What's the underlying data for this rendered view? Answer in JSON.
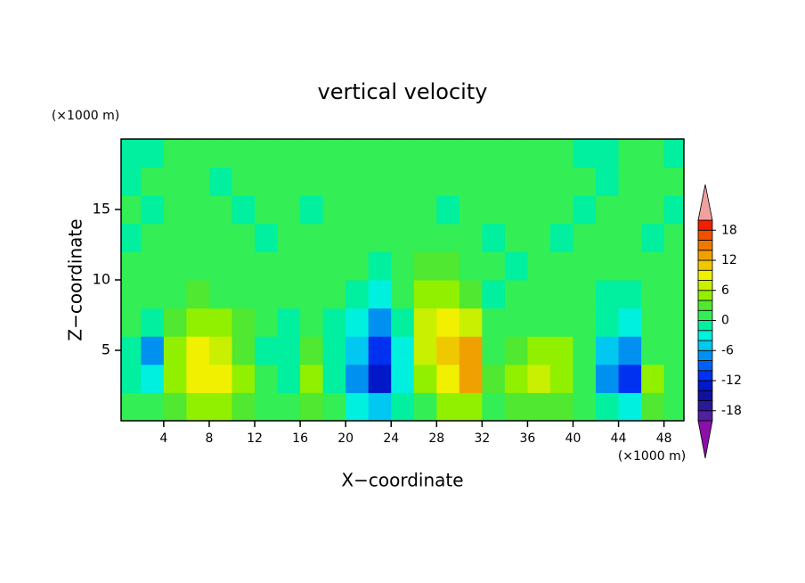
{
  "chart_data": {
    "type": "contour",
    "title": "vertical velocity",
    "xlabel": "X−coordinate",
    "ylabel": "Z−coordinate",
    "x_unit": "(×1000 m)",
    "y_unit": "(×1000 m)",
    "xlim": [
      0.25,
      49.75
    ],
    "ylim": [
      0,
      20
    ],
    "xticks": [
      4,
      8,
      12,
      16,
      20,
      24,
      28,
      32,
      36,
      40,
      44,
      48
    ],
    "yticks": [
      5,
      10,
      15
    ],
    "x": [
      1,
      3,
      5,
      7,
      9,
      11,
      13,
      15,
      17,
      19,
      21,
      23,
      25,
      27,
      29,
      31,
      33,
      35,
      37,
      39,
      41,
      43,
      45,
      47,
      49
    ],
    "y": [
      1,
      3,
      5,
      7,
      9,
      11,
      13,
      15,
      17,
      19
    ],
    "z": [
      [
        1,
        0,
        2,
        4,
        5,
        3,
        1,
        0,
        2,
        0,
        -3,
        -6,
        -2,
        1,
        4,
        5,
        1,
        2,
        3,
        3,
        1,
        -2,
        -4,
        2,
        0
      ],
      [
        -1,
        -4,
        4,
        8,
        9,
        4,
        0,
        -1,
        5,
        -1,
        -8,
        -14,
        -4,
        4,
        9,
        12,
        2,
        4,
        6,
        5,
        0,
        -8,
        -12,
        4,
        1
      ],
      [
        -2,
        -7,
        4,
        8,
        7,
        3,
        -1,
        -2,
        2,
        -1,
        -6,
        -12,
        -3,
        6,
        11,
        12,
        1,
        2,
        5,
        4,
        0,
        -6,
        -8,
        1,
        0
      ],
      [
        0,
        -2,
        2,
        4,
        4,
        2,
        0,
        -1,
        0,
        -1,
        -3,
        -7,
        -2,
        6,
        9,
        6,
        0,
        0,
        1,
        1,
        0,
        -2,
        -3,
        0,
        0
      ],
      [
        1,
        0,
        1,
        2,
        1,
        1,
        0,
        0,
        1,
        0,
        -1,
        -3,
        0,
        4,
        5,
        3,
        -1,
        0,
        1,
        0,
        1,
        -1,
        -1,
        0,
        1
      ],
      [
        0,
        1,
        0,
        1,
        0,
        1,
        0,
        1,
        0,
        1,
        0,
        -1,
        1,
        2,
        2,
        1,
        0,
        -1,
        0,
        1,
        0,
        0,
        1,
        0,
        1
      ],
      [
        -1,
        0,
        1,
        0,
        1,
        0,
        -1,
        0,
        1,
        0,
        1,
        0,
        0,
        1,
        0,
        1,
        -1,
        0,
        1,
        -1,
        0,
        1,
        0,
        -1,
        0
      ],
      [
        1,
        -1,
        0,
        1,
        0,
        -1,
        1,
        0,
        -1,
        0,
        1,
        0,
        1,
        0,
        -1,
        0,
        1,
        0,
        1,
        0,
        -1,
        0,
        1,
        0,
        -1
      ],
      [
        -1,
        0,
        1,
        0,
        -1,
        1,
        0,
        1,
        0,
        1,
        0,
        1,
        0,
        1,
        1,
        0,
        1,
        0,
        0,
        1,
        0,
        -1,
        0,
        1,
        0
      ],
      [
        -1,
        -1,
        1,
        1,
        0,
        1,
        1,
        1,
        0,
        1,
        1,
        1,
        1,
        1,
        1,
        0,
        1,
        1,
        0,
        1,
        -1,
        -1,
        1,
        0,
        -1
      ]
    ],
    "levels": [
      -20,
      -18,
      -16,
      -14,
      -12,
      -10,
      -8,
      -6,
      -4,
      -2,
      0,
      2,
      4,
      6,
      8,
      10,
      12,
      14,
      16,
      18,
      20
    ],
    "colors": [
      "#8a10a8",
      "#5020a0",
      "#2a1a9a",
      "#1010a0",
      "#0018c8",
      "#0030f0",
      "#0060f8",
      "#0090f0",
      "#00c8f0",
      "#00f0e0",
      "#00f0a0",
      "#33ee55",
      "#50e830",
      "#90f000",
      "#c8f000",
      "#f0f000",
      "#f0c800",
      "#f0a000",
      "#f07800",
      "#f05000",
      "#f02000",
      "#f0a0a0"
    ],
    "colorbar_ticks": [
      -18,
      -12,
      -6,
      0,
      6,
      12,
      18
    ]
  }
}
